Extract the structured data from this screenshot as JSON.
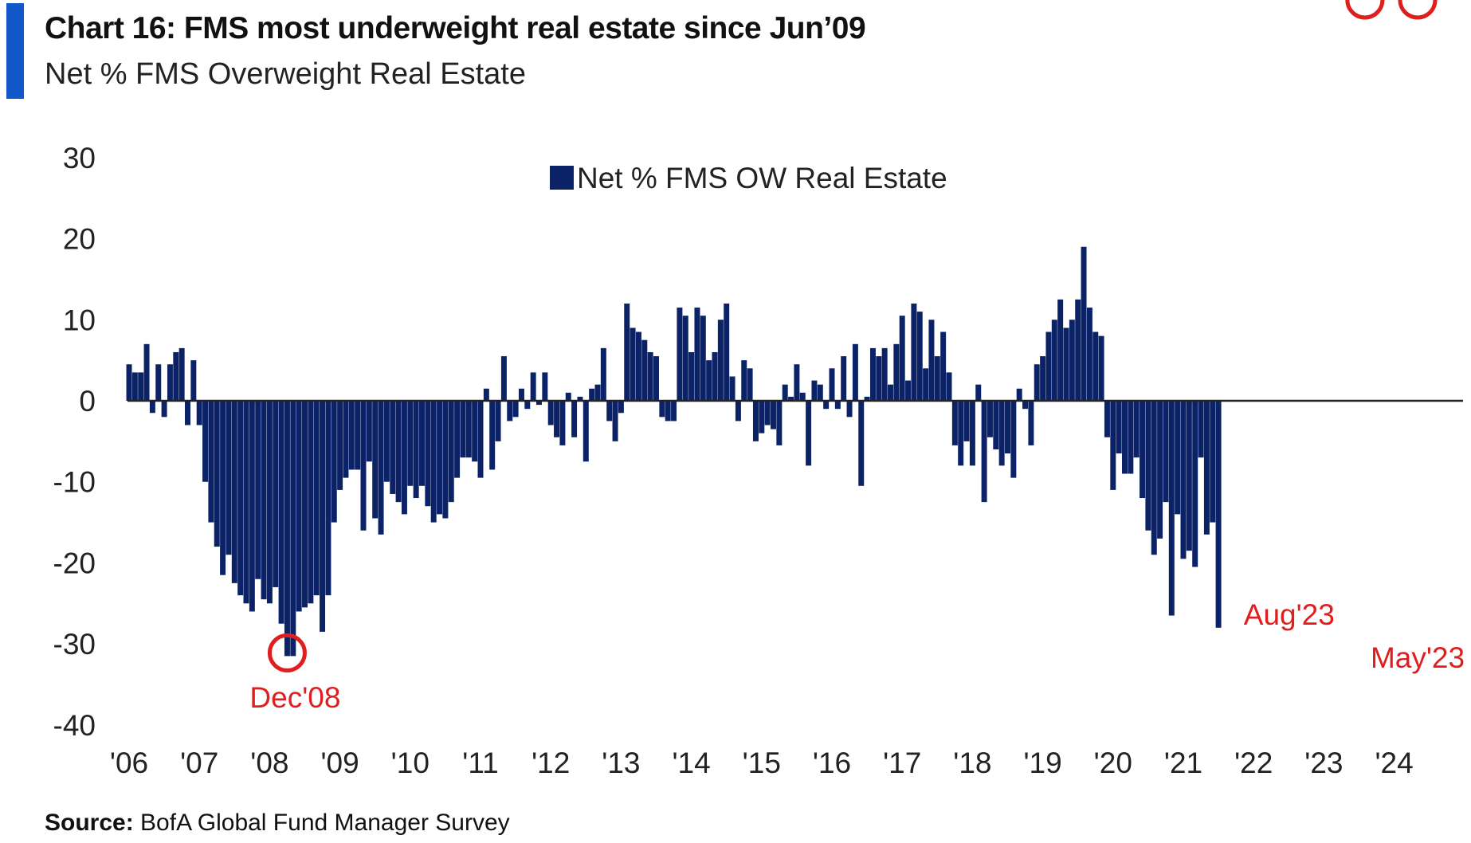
{
  "header": {
    "title": "Chart 16: FMS most underweight real estate since Jun’09",
    "subtitle": "Net % FMS Overweight Real Estate"
  },
  "footer": {
    "source_label": "Source:",
    "source_text": " BofA Global Fund Manager Survey"
  },
  "colors": {
    "bar": "#0c2266",
    "accent": "#1358c9",
    "annotation": "#e01e1e",
    "zero_line": "#222222"
  },
  "chart_data": {
    "type": "bar",
    "title": "Chart 16: FMS most underweight real estate since Jun’09",
    "subtitle": "Net % FMS Overweight Real Estate",
    "xlabel": "",
    "ylabel": "",
    "ylim": [
      -40,
      30
    ],
    "yticks": [
      30,
      20,
      10,
      0,
      -10,
      -20,
      -30,
      -40
    ],
    "xticks": [
      "'06",
      "'07",
      "'08",
      "'09",
      "'10",
      "'11",
      "'12",
      "'13",
      "'14",
      "'15",
      "'16",
      "'17",
      "'18",
      "'19",
      "'20",
      "'21",
      "'22",
      "'23",
      "'24"
    ],
    "x_start": "Jan 2006",
    "frequency": "monthly",
    "legend": {
      "position": "top-center",
      "entries": [
        "Net % FMS OW Real Estate"
      ]
    },
    "grid": false,
    "series": [
      {
        "name": "Net % FMS OW Real Estate",
        "values": [
          4.5,
          3.5,
          3.5,
          7.0,
          -1.5,
          4.5,
          -2.0,
          4.5,
          6.0,
          6.5,
          -3.0,
          5.0,
          -3.0,
          -10.0,
          -15.0,
          -18.0,
          -21.5,
          -19.0,
          -22.5,
          -24.0,
          -25.0,
          -26.0,
          -22.0,
          -24.5,
          -25.0,
          -23.0,
          -27.5,
          -31.5,
          -31.5,
          -26.0,
          -25.5,
          -25.0,
          -24.0,
          -28.5,
          -24.0,
          -15.0,
          -11.0,
          -9.5,
          -8.5,
          -8.5,
          -16.0,
          -7.5,
          -14.5,
          -16.5,
          -10.0,
          -11.5,
          -12.5,
          -14.0,
          -10.5,
          -12.0,
          -10.5,
          -13.0,
          -15.0,
          -14.0,
          -14.5,
          -12.5,
          -9.5,
          -7.0,
          -7.0,
          -7.5,
          -9.5,
          1.5,
          -8.5,
          -5.0,
          5.5,
          -2.5,
          -2.0,
          1.5,
          -1.0,
          3.5,
          -0.5,
          3.5,
          -3.0,
          -4.5,
          -5.5,
          1.0,
          -4.5,
          0.5,
          -7.5,
          1.5,
          2.0,
          6.5,
          -2.5,
          -5.0,
          -1.5,
          12.0,
          9.0,
          8.5,
          7.5,
          6.0,
          5.5,
          -2.0,
          -2.5,
          -2.5,
          11.5,
          10.5,
          6.0,
          11.5,
          10.5,
          5.0,
          6.0,
          10.0,
          12.0,
          3.0,
          -2.5,
          5.0,
          4.0,
          -5.0,
          -4.0,
          -3.0,
          -3.5,
          -5.5,
          2.0,
          0.5,
          4.5,
          1.0,
          -8.0,
          2.5,
          2.0,
          -1.0,
          4.0,
          -1.0,
          5.5,
          -2.0,
          7.0,
          -10.5,
          0.5,
          6.5,
          5.5,
          6.5,
          2.0,
          7.0,
          10.5,
          2.5,
          12.0,
          11.0,
          4.0,
          10.0,
          5.5,
          8.5,
          3.5,
          -5.5,
          -8.0,
          -5.0,
          -8.0,
          2.0,
          -12.5,
          -4.5,
          -6.0,
          -8.0,
          -6.5,
          -9.5,
          1.5,
          -1.0,
          -5.5,
          4.5,
          5.5,
          8.5,
          10.0,
          12.5,
          9.0,
          10.0,
          12.5,
          19.0,
          11.5,
          8.5,
          8.0,
          -4.5,
          -11.0,
          -6.5,
          -9.0,
          -9.0,
          -7.0,
          -12.0,
          -16.0,
          -19.0,
          -17.0,
          -12.5,
          -26.5,
          -14.0,
          -19.5,
          -18.5,
          -20.5,
          -7.0,
          -16.5,
          -15.0,
          -28.0
        ]
      }
    ],
    "annotations": [
      {
        "label": "Dec'08",
        "index": 27
      },
      {
        "label": "Aug'23",
        "index": 211
      },
      {
        "label": "May'23",
        "index": 220
      }
    ]
  }
}
